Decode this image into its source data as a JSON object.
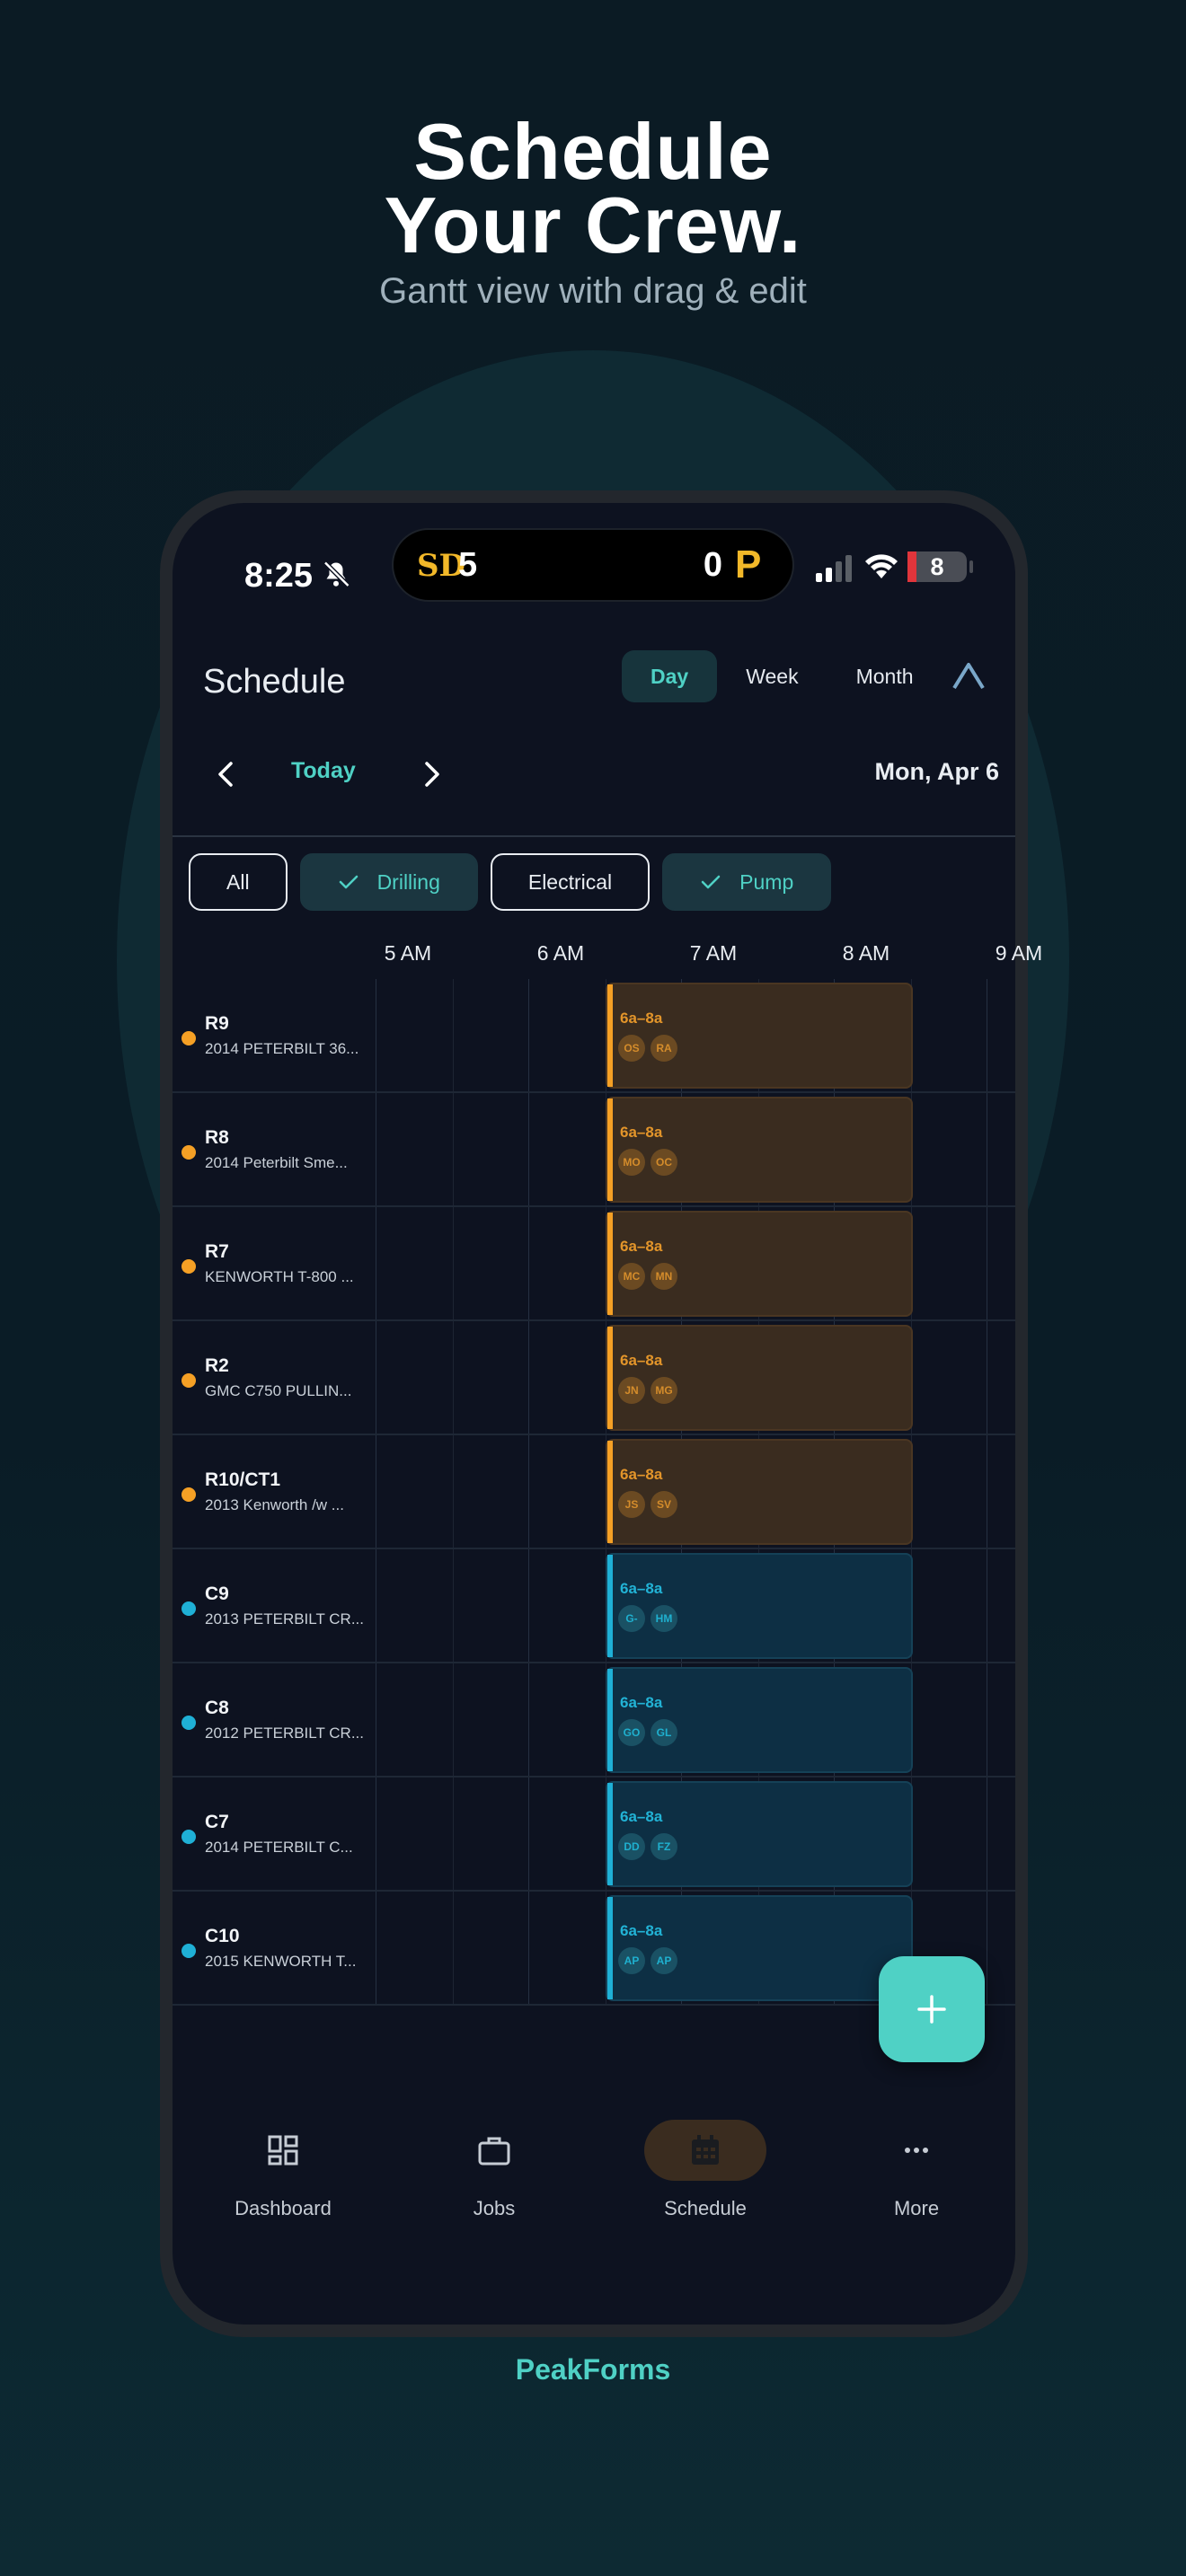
{
  "hero": {
    "title_line1": "Schedule",
    "title_line2": "Your Crew.",
    "subtitle": "Gantt view with drag & edit"
  },
  "status_bar": {
    "time": "8:25",
    "score_left": "5",
    "score_right": "0",
    "battery": "8"
  },
  "header": {
    "title": "Schedule",
    "tabs": [
      {
        "label": "Day",
        "active": true
      },
      {
        "label": "Week",
        "active": false
      },
      {
        "label": "Month",
        "active": false
      }
    ]
  },
  "date_nav": {
    "today_label": "Today",
    "date": "Mon, Apr 6"
  },
  "filters": [
    {
      "label": "All",
      "selected": false
    },
    {
      "label": "Drilling",
      "selected": true
    },
    {
      "label": "Electrical",
      "selected": false
    },
    {
      "label": "Pump",
      "selected": true
    }
  ],
  "time_labels": [
    "5 AM",
    "6 AM",
    "7 AM",
    "8 AM",
    "9 AM"
  ],
  "colors": {
    "accent": "#4fd1c5",
    "drilling": "#f5a025",
    "electrical": "#1fb0d6"
  },
  "rows": [
    {
      "name": "R9",
      "desc": "2014 PETERBILT 36...",
      "type": "drilling",
      "time": "6a–8a",
      "crew": [
        "OS",
        "RA"
      ]
    },
    {
      "name": "R8",
      "desc": "2014 Peterbilt  Sme...",
      "type": "drilling",
      "time": "6a–8a",
      "crew": [
        "MO",
        "OC"
      ]
    },
    {
      "name": "R7",
      "desc": "KENWORTH T-800 ...",
      "type": "drilling",
      "time": "6a–8a",
      "crew": [
        "MC",
        "MN"
      ]
    },
    {
      "name": "R2",
      "desc": "GMC C750 PULLIN...",
      "type": "drilling",
      "time": "6a–8a",
      "crew": [
        "JN",
        "MG"
      ]
    },
    {
      "name": "R10/CT1",
      "desc": "2013 Kenworth /w ...",
      "type": "drilling",
      "time": "6a–8a",
      "crew": [
        "JS",
        "SV"
      ]
    },
    {
      "name": "C9",
      "desc": "2013 PETERBILT CR...",
      "type": "electrical",
      "time": "6a–8a",
      "crew": [
        "G-",
        "HM"
      ]
    },
    {
      "name": "C8",
      "desc": "2012 PETERBILT CR...",
      "type": "electrical",
      "time": "6a–8a",
      "crew": [
        "GO",
        "GL"
      ]
    },
    {
      "name": "C7",
      "desc": "2014 PETERBILT C...",
      "type": "electrical",
      "time": "6a–8a",
      "crew": [
        "DD",
        "FZ"
      ]
    },
    {
      "name": "C10",
      "desc": "2015 KENWORTH T...",
      "type": "electrical",
      "time": "6a–8a",
      "crew": [
        "AP",
        "AP"
      ]
    }
  ],
  "bottom_nav": [
    {
      "label": "Dashboard",
      "icon": "dashboard-icon",
      "active": false
    },
    {
      "label": "Jobs",
      "icon": "briefcase-icon",
      "active": false
    },
    {
      "label": "Schedule",
      "icon": "calendar-icon",
      "active": true
    },
    {
      "label": "More",
      "icon": "more-icon",
      "active": false
    }
  ],
  "brand": "PeakForms"
}
